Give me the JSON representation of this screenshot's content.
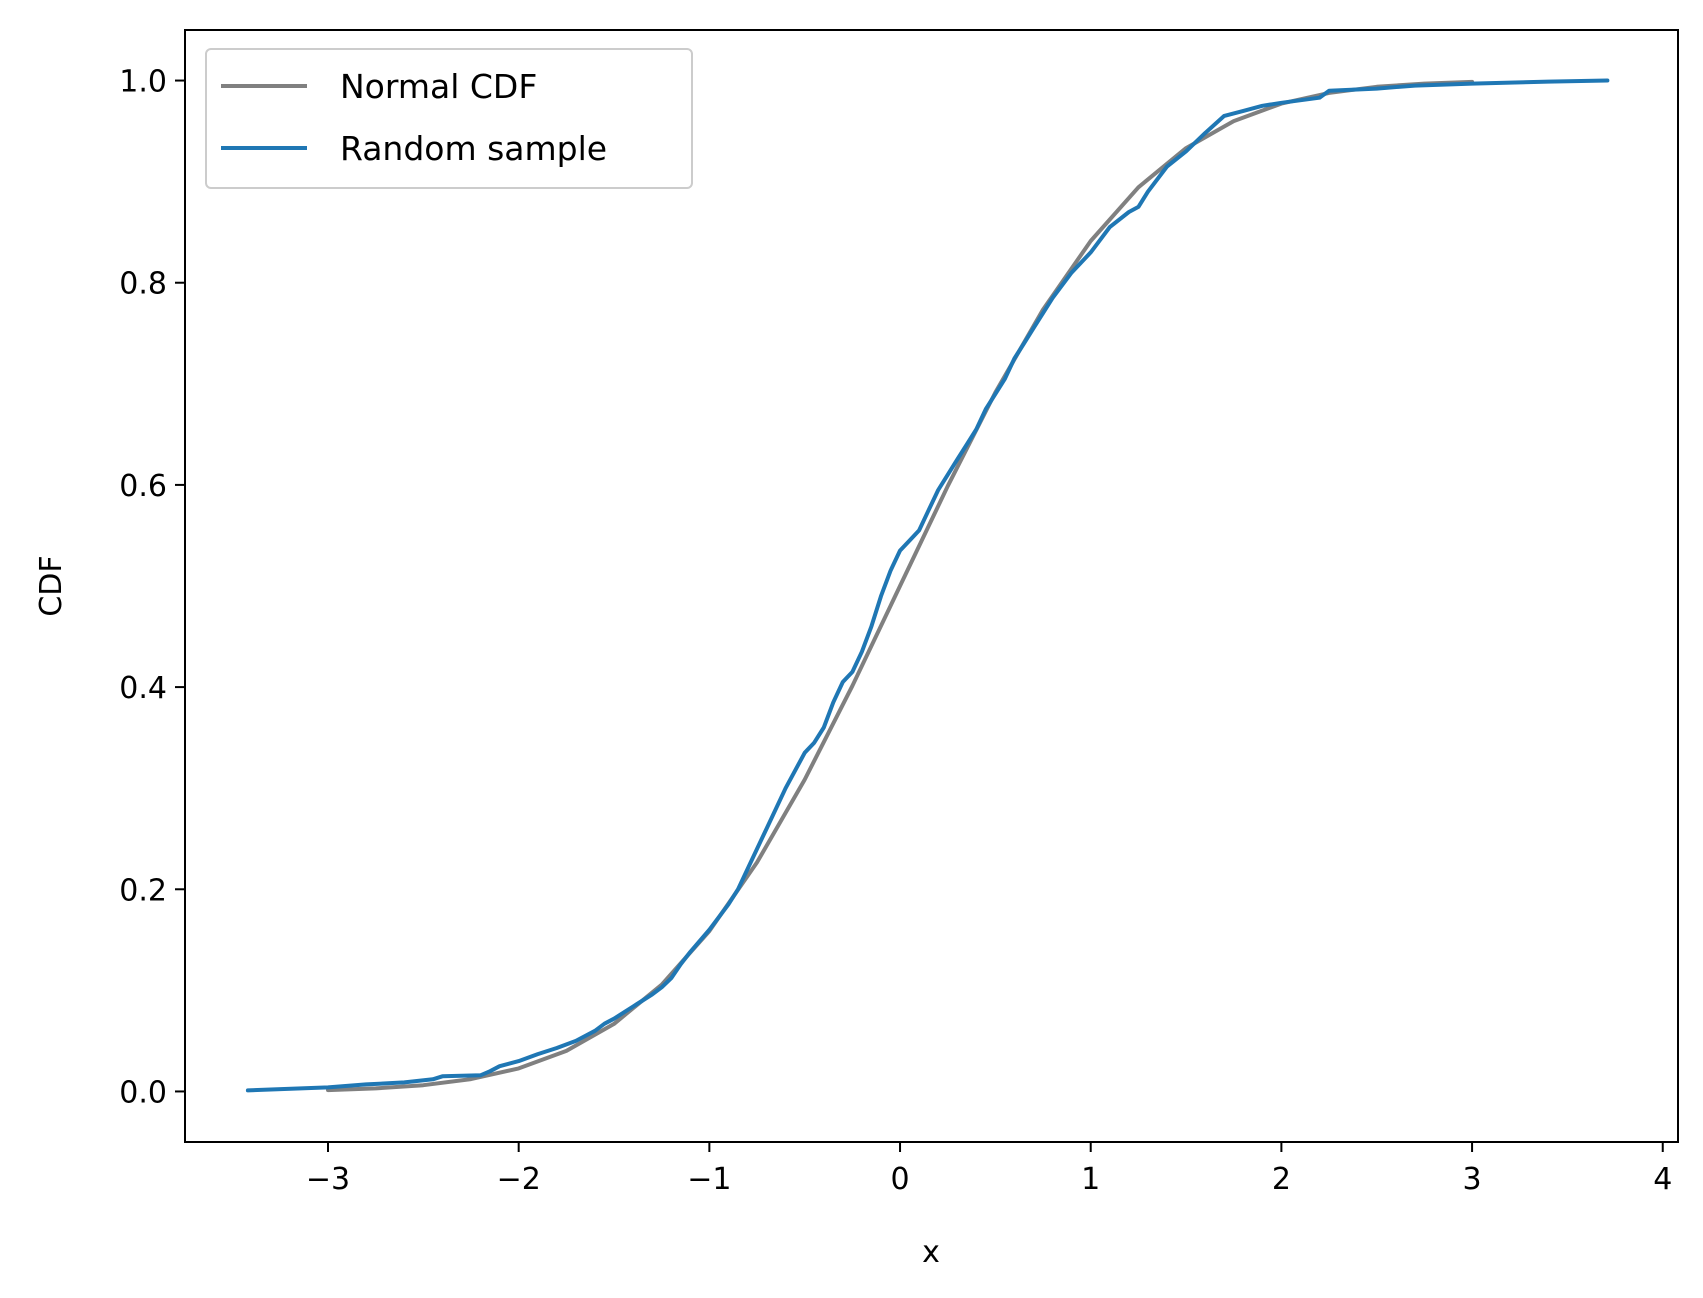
{
  "chart_data": {
    "type": "line",
    "title": "",
    "xlabel": "x",
    "ylabel": "CDF",
    "xlim": [
      -3.75,
      4.08
    ],
    "ylim": [
      -0.05,
      1.05
    ],
    "xticks": [
      -3,
      -2,
      -1,
      0,
      1,
      2,
      3,
      4
    ],
    "xtick_labels": [
      "−3",
      "−2",
      "−1",
      "0",
      "1",
      "2",
      "3",
      "4"
    ],
    "yticks": [
      0.0,
      0.2,
      0.4,
      0.6,
      0.8,
      1.0
    ],
    "ytick_labels": [
      "0.0",
      "0.2",
      "0.4",
      "0.6",
      "0.8",
      "1.0"
    ],
    "grid": false,
    "legend_position": "upper-left",
    "series": [
      {
        "name": "Normal CDF",
        "color": "#808080",
        "x": [
          -3.0,
          -2.75,
          -2.5,
          -2.25,
          -2.0,
          -1.75,
          -1.5,
          -1.25,
          -1.0,
          -0.75,
          -0.5,
          -0.25,
          0.0,
          0.25,
          0.5,
          0.75,
          1.0,
          1.25,
          1.5,
          1.75,
          2.0,
          2.25,
          2.5,
          2.75,
          3.0
        ],
        "y": [
          0.0013,
          0.003,
          0.0062,
          0.0122,
          0.0228,
          0.0401,
          0.0668,
          0.1056,
          0.1587,
          0.2266,
          0.3085,
          0.4013,
          0.5,
          0.5987,
          0.6915,
          0.7734,
          0.8413,
          0.8944,
          0.9332,
          0.9599,
          0.9772,
          0.9878,
          0.9938,
          0.997,
          0.9987
        ]
      },
      {
        "name": "Random sample",
        "color": "#1f77b4",
        "x": [
          -3.42,
          -3.0,
          -2.8,
          -2.6,
          -2.45,
          -2.4,
          -2.2,
          -2.15,
          -2.1,
          -2.0,
          -1.9,
          -1.8,
          -1.7,
          -1.6,
          -1.55,
          -1.5,
          -1.45,
          -1.4,
          -1.35,
          -1.3,
          -1.25,
          -1.2,
          -1.15,
          -1.1,
          -1.0,
          -0.9,
          -0.85,
          -0.8,
          -0.7,
          -0.6,
          -0.5,
          -0.45,
          -0.4,
          -0.35,
          -0.3,
          -0.25,
          -0.2,
          -0.15,
          -0.1,
          -0.05,
          0.0,
          0.05,
          0.1,
          0.15,
          0.2,
          0.25,
          0.3,
          0.35,
          0.4,
          0.45,
          0.5,
          0.55,
          0.6,
          0.65,
          0.7,
          0.8,
          0.9,
          1.0,
          1.1,
          1.2,
          1.25,
          1.3,
          1.4,
          1.5,
          1.6,
          1.7,
          1.8,
          1.9,
          2.0,
          2.2,
          2.25,
          2.5,
          2.7,
          3.0,
          3.2,
          3.4,
          3.71
        ],
        "y": [
          0.001,
          0.004,
          0.007,
          0.009,
          0.012,
          0.015,
          0.016,
          0.02,
          0.025,
          0.03,
          0.037,
          0.043,
          0.05,
          0.06,
          0.067,
          0.072,
          0.078,
          0.084,
          0.09,
          0.096,
          0.103,
          0.112,
          0.126,
          0.138,
          0.16,
          0.185,
          0.2,
          0.22,
          0.26,
          0.3,
          0.335,
          0.345,
          0.36,
          0.385,
          0.405,
          0.415,
          0.435,
          0.46,
          0.49,
          0.515,
          0.535,
          0.545,
          0.555,
          0.575,
          0.595,
          0.61,
          0.625,
          0.64,
          0.655,
          0.675,
          0.69,
          0.705,
          0.725,
          0.74,
          0.755,
          0.785,
          0.81,
          0.83,
          0.855,
          0.87,
          0.875,
          0.89,
          0.915,
          0.93,
          0.948,
          0.965,
          0.97,
          0.975,
          0.978,
          0.983,
          0.99,
          0.992,
          0.995,
          0.997,
          0.998,
          0.999,
          1.0
        ]
      }
    ]
  }
}
